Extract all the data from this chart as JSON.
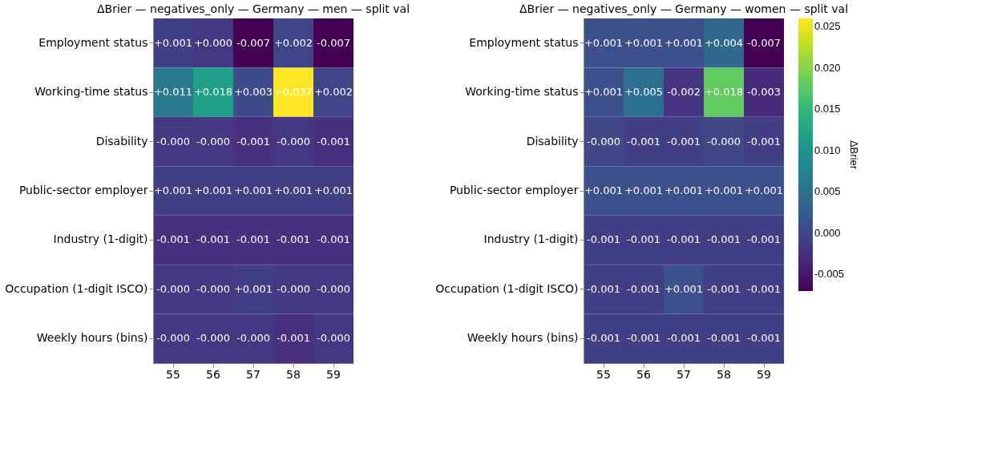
{
  "chart_data": [
    {
      "type": "heatmap",
      "title": "ΔBrier — negatives_only — Germany — men — split val",
      "categories": [
        "55",
        "56",
        "57",
        "58",
        "59"
      ],
      "y_categories": [
        "Employment status",
        "Working-time status",
        "Disability",
        "Public-sector employer",
        "Industry (1-digit)",
        "Occupation (1-digit ISCO)",
        "Weekly hours (bins)"
      ],
      "cells": [
        [
          0.001,
          0.0,
          -0.007,
          0.002,
          -0.007
        ],
        [
          0.011,
          0.018,
          0.003,
          0.037,
          0.002
        ],
        [
          0.0,
          0.0,
          -0.001,
          0.0,
          -0.001
        ],
        [
          0.001,
          0.001,
          0.001,
          0.001,
          0.001
        ],
        [
          -0.001,
          -0.001,
          -0.001,
          -0.001,
          -0.001
        ],
        [
          0.0,
          0.0,
          0.001,
          0.0,
          0.0
        ],
        [
          0.0,
          0.0,
          0.0,
          -0.001,
          0.0
        ]
      ],
      "cell_labels": [
        [
          "+0.001",
          "+0.000",
          "-0.007",
          "+0.002",
          "-0.007"
        ],
        [
          "+0.011",
          "+0.018",
          "+0.003",
          "+0.037",
          "+0.002"
        ],
        [
          "-0.000",
          "-0.000",
          "-0.001",
          "-0.000",
          "-0.001"
        ],
        [
          "+0.001",
          "+0.001",
          "+0.001",
          "+0.001",
          "+0.001"
        ],
        [
          "-0.001",
          "-0.001",
          "-0.001",
          "-0.001",
          "-0.001"
        ],
        [
          "-0.000",
          "-0.000",
          "+0.001",
          "-0.000",
          "-0.000"
        ],
        [
          "-0.000",
          "-0.000",
          "-0.000",
          "-0.001",
          "-0.000"
        ]
      ],
      "data_labels": true
    },
    {
      "type": "heatmap",
      "title": "ΔBrier — negatives_only — Germany — women — split val",
      "categories": [
        "55",
        "56",
        "57",
        "58",
        "59"
      ],
      "y_categories": [
        "Employment status",
        "Working-time status",
        "Disability",
        "Public-sector employer",
        "Industry (1-digit)",
        "Occupation (1-digit ISCO)",
        "Weekly hours (bins)"
      ],
      "cells": [
        [
          0.001,
          0.001,
          0.001,
          0.004,
          -0.007
        ],
        [
          0.001,
          0.005,
          -0.002,
          0.018,
          -0.003
        ],
        [
          0.0,
          -0.001,
          -0.001,
          0.0,
          -0.001
        ],
        [
          0.001,
          0.001,
          0.001,
          0.001,
          0.001
        ],
        [
          -0.001,
          -0.001,
          -0.001,
          -0.001,
          -0.001
        ],
        [
          -0.001,
          -0.001,
          0.001,
          -0.001,
          -0.001
        ],
        [
          -0.001,
          -0.001,
          -0.001,
          -0.001,
          -0.001
        ]
      ],
      "cell_labels": [
        [
          "+0.001",
          "+0.001",
          "+0.001",
          "+0.004",
          "-0.007"
        ],
        [
          "+0.001",
          "+0.005",
          "-0.002",
          "+0.018",
          "-0.003"
        ],
        [
          "-0.000",
          "-0.001",
          "-0.001",
          "-0.000",
          "-0.001"
        ],
        [
          "+0.001",
          "+0.001",
          "+0.001",
          "+0.001",
          "+0.001"
        ],
        [
          "-0.001",
          "-0.001",
          "-0.001",
          "-0.001",
          "-0.001"
        ],
        [
          "-0.001",
          "-0.001",
          "+0.001",
          "-0.001",
          "-0.001"
        ],
        [
          "-0.001",
          "-0.001",
          "-0.001",
          "-0.001",
          "-0.001"
        ]
      ],
      "data_labels": true,
      "clabel": "ΔBrier",
      "clim": [
        -0.007,
        0.026
      ],
      "cticks": [
        -0.005,
        {
          "value": 0,
          "label": "0.000"
        },
        0.005,
        {
          "value": 0.01,
          "label": "0.010"
        },
        0.015,
        {
          "value": 0.02,
          "label": "0.020"
        },
        0.025
      ]
    }
  ]
}
